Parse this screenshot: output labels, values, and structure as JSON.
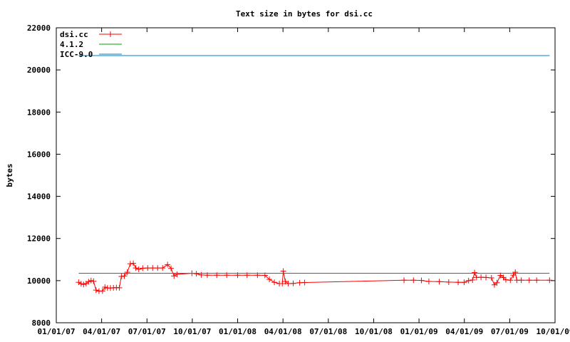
{
  "chart_data": {
    "type": "line",
    "title": "Text size in bytes for dsi.cc",
    "xlabel": "",
    "ylabel": "bytes",
    "ylim": [
      8000,
      22000
    ],
    "yticks": [
      8000,
      10000,
      12000,
      14000,
      16000,
      18000,
      20000,
      22000
    ],
    "xlim": [
      "2007-01-01",
      "2009-10-01"
    ],
    "xticks": [
      "01/01/07",
      "04/01/07",
      "07/01/07",
      "10/01/07",
      "01/01/08",
      "04/01/08",
      "07/01/08",
      "10/01/08",
      "01/01/09",
      "04/01/09",
      "07/01/09",
      "10/01/09"
    ],
    "grid": false,
    "legend": "top-left",
    "series": [
      {
        "name": "dsi.cc",
        "color": "#ff0000",
        "marker": "plus",
        "points": [
          [
            "2007-02-15",
            9920
          ],
          [
            "2007-02-20",
            9850
          ],
          [
            "2007-02-25",
            9820
          ],
          [
            "2007-03-02",
            9860
          ],
          [
            "2007-03-07",
            9950
          ],
          [
            "2007-03-12",
            10000
          ],
          [
            "2007-03-17",
            9970
          ],
          [
            "2007-03-22",
            9550
          ],
          [
            "2007-03-28",
            9500
          ],
          [
            "2007-04-04",
            9510
          ],
          [
            "2007-04-09",
            9690
          ],
          [
            "2007-04-14",
            9650
          ],
          [
            "2007-04-20",
            9650
          ],
          [
            "2007-04-26",
            9660
          ],
          [
            "2007-05-02",
            9670
          ],
          [
            "2007-05-08",
            9660
          ],
          [
            "2007-05-12",
            10200
          ],
          [
            "2007-05-18",
            10220
          ],
          [
            "2007-05-24",
            10400
          ],
          [
            "2007-05-30",
            10800
          ],
          [
            "2007-06-05",
            10820
          ],
          [
            "2007-06-10",
            10600
          ],
          [
            "2007-06-16",
            10540
          ],
          [
            "2007-06-24",
            10590
          ],
          [
            "2007-07-04",
            10600
          ],
          [
            "2007-07-14",
            10600
          ],
          [
            "2007-07-24",
            10600
          ],
          [
            "2007-08-03",
            10600
          ],
          [
            "2007-08-13",
            10760
          ],
          [
            "2007-08-20",
            10580
          ],
          [
            "2007-08-26",
            10220
          ],
          [
            "2007-09-01",
            10300
          ],
          [
            "2007-10-01",
            10350
          ],
          [
            "2007-10-10",
            10330
          ],
          [
            "2007-10-20",
            10270
          ],
          [
            "2007-11-01",
            10260
          ],
          [
            "2007-11-20",
            10260
          ],
          [
            "2007-12-10",
            10260
          ],
          [
            "2008-01-01",
            10260
          ],
          [
            "2008-01-20",
            10260
          ],
          [
            "2008-02-10",
            10260
          ],
          [
            "2008-02-25",
            10250
          ],
          [
            "2008-03-05",
            10060
          ],
          [
            "2008-03-15",
            9920
          ],
          [
            "2008-03-25",
            9860
          ],
          [
            "2008-03-31",
            9860
          ],
          [
            "2008-04-02",
            10450
          ],
          [
            "2008-04-06",
            9960
          ],
          [
            "2008-04-12",
            9860
          ],
          [
            "2008-04-22",
            9870
          ],
          [
            "2008-05-05",
            9900
          ],
          [
            "2008-05-15",
            9910
          ],
          [
            "2008-12-01",
            10020
          ],
          [
            "2008-12-20",
            10020
          ],
          [
            "2009-01-05",
            10010
          ],
          [
            "2009-01-20",
            9960
          ],
          [
            "2009-02-10",
            9950
          ],
          [
            "2009-03-01",
            9930
          ],
          [
            "2009-03-20",
            9920
          ],
          [
            "2009-04-01",
            9920
          ],
          [
            "2009-04-10",
            10000
          ],
          [
            "2009-04-18",
            10030
          ],
          [
            "2009-04-22",
            10380
          ],
          [
            "2009-04-26",
            10150
          ],
          [
            "2009-05-05",
            10160
          ],
          [
            "2009-05-15",
            10150
          ],
          [
            "2009-05-26",
            10130
          ],
          [
            "2009-06-01",
            9800
          ],
          [
            "2009-06-06",
            9900
          ],
          [
            "2009-06-13",
            10250
          ],
          [
            "2009-06-19",
            10150
          ],
          [
            "2009-06-24",
            10040
          ],
          [
            "2009-07-03",
            10020
          ],
          [
            "2009-07-09",
            10260
          ],
          [
            "2009-07-13",
            10400
          ],
          [
            "2009-07-16",
            10020
          ],
          [
            "2009-07-25",
            10020
          ],
          [
            "2009-08-10",
            10020
          ],
          [
            "2009-08-25",
            10020
          ],
          [
            "2009-09-20",
            10020
          ]
        ]
      },
      {
        "name": "4.1.2",
        "color": "#00a000",
        "marker": "none",
        "points": [
          [
            "2007-02-15",
            10350
          ],
          [
            "2009-09-20",
            10350
          ]
        ]
      },
      {
        "name": "ICC-9.0",
        "color": "#0080c0",
        "marker": "none",
        "points": [
          [
            "2007-02-15",
            20680
          ],
          [
            "2009-09-20",
            20680
          ]
        ]
      }
    ]
  }
}
